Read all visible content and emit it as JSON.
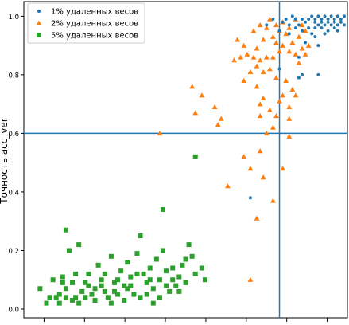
{
  "chart_data": {
    "type": "scatter",
    "title": "",
    "xlabel": "",
    "ylabel": "Точность acc_ver",
    "xlim": [
      0.0,
      1.0
    ],
    "ylim": [
      -0.03,
      1.05
    ],
    "y_ticks": [
      0.0,
      0.2,
      0.4,
      0.6,
      0.8,
      1.0
    ],
    "y_tick_labels": [
      "0.0",
      "0.2",
      "0.4",
      "0.6",
      "0.8",
      "1.0"
    ],
    "x_tick_count": 8,
    "threshold_lines": {
      "horizontal_y": 0.6,
      "vertical_x": 0.79
    },
    "legend_position": "top-left",
    "grid": false,
    "series": [
      {
        "name": "1% удаленных весов",
        "marker": "circle",
        "color": "#1f77b4",
        "points": [
          [
            0.88,
            0.99
          ],
          [
            0.89,
            1.0
          ],
          [
            0.9,
            0.99
          ],
          [
            0.91,
            1.0
          ],
          [
            0.92,
            0.99
          ],
          [
            0.93,
            1.0
          ],
          [
            0.94,
            0.99
          ],
          [
            0.95,
            1.0
          ],
          [
            0.96,
            0.99
          ],
          [
            0.97,
            1.0
          ],
          [
            0.98,
            0.99
          ],
          [
            0.99,
            1.0
          ],
          [
            0.9,
            0.98
          ],
          [
            0.92,
            0.98
          ],
          [
            0.94,
            0.98
          ],
          [
            0.96,
            0.98
          ],
          [
            0.98,
            0.98
          ],
          [
            0.91,
            0.97
          ],
          [
            0.93,
            0.97
          ],
          [
            0.95,
            0.97
          ],
          [
            0.97,
            0.97
          ],
          [
            0.86,
            0.99
          ],
          [
            0.87,
            0.98
          ],
          [
            0.85,
            0.97
          ],
          [
            0.84,
            0.99
          ],
          [
            0.83,
            1.0
          ],
          [
            0.81,
            0.99
          ],
          [
            0.8,
            0.98
          ],
          [
            0.82,
            0.97
          ],
          [
            0.9,
            0.96
          ],
          [
            0.92,
            0.96
          ],
          [
            0.94,
            0.95
          ],
          [
            0.96,
            0.96
          ],
          [
            0.88,
            0.96
          ],
          [
            0.86,
            0.95
          ],
          [
            0.84,
            0.96
          ],
          [
            0.75,
            0.97
          ],
          [
            0.77,
            0.99
          ],
          [
            0.79,
            0.95
          ],
          [
            0.82,
            0.94
          ],
          [
            0.89,
            0.94
          ],
          [
            0.93,
            0.94
          ],
          [
            0.97,
            0.95
          ],
          [
            0.99,
            0.97
          ],
          [
            0.9,
            0.93
          ],
          [
            0.87,
            0.91
          ],
          [
            0.91,
            0.9
          ],
          [
            0.85,
            0.86
          ],
          [
            0.86,
            0.8
          ],
          [
            0.91,
            0.8
          ],
          [
            0.79,
            0.82
          ],
          [
            0.85,
            0.79
          ],
          [
            0.7,
            0.38
          ]
        ]
      },
      {
        "name": "2% удаленных весов",
        "marker": "triangle",
        "color": "#ff7f0e",
        "points": [
          [
            0.76,
            0.99
          ],
          [
            0.78,
            0.97
          ],
          [
            0.8,
            0.98
          ],
          [
            0.82,
            0.96
          ],
          [
            0.84,
            0.99
          ],
          [
            0.86,
            0.97
          ],
          [
            0.87,
            0.95
          ],
          [
            0.85,
            0.93
          ],
          [
            0.81,
            0.94
          ],
          [
            0.79,
            0.95
          ],
          [
            0.77,
            0.93
          ],
          [
            0.75,
            0.96
          ],
          [
            0.73,
            0.97
          ],
          [
            0.71,
            0.95
          ],
          [
            0.74,
            0.92
          ],
          [
            0.78,
            0.91
          ],
          [
            0.8,
            0.9
          ],
          [
            0.83,
            0.91
          ],
          [
            0.86,
            0.89
          ],
          [
            0.88,
            0.9
          ],
          [
            0.84,
            0.87
          ],
          [
            0.82,
            0.88
          ],
          [
            0.87,
            0.87
          ],
          [
            0.85,
            0.84
          ],
          [
            0.66,
            0.92
          ],
          [
            0.68,
            0.9
          ],
          [
            0.72,
            0.89
          ],
          [
            0.65,
            0.85
          ],
          [
            0.67,
            0.86
          ],
          [
            0.69,
            0.87
          ],
          [
            0.71,
            0.86
          ],
          [
            0.73,
            0.85
          ],
          [
            0.75,
            0.86
          ],
          [
            0.77,
            0.86
          ],
          [
            0.79,
            0.88
          ],
          [
            0.72,
            0.83
          ],
          [
            0.74,
            0.81
          ],
          [
            0.7,
            0.81
          ],
          [
            0.68,
            0.78
          ],
          [
            0.76,
            0.82
          ],
          [
            0.78,
            0.79
          ],
          [
            0.81,
            0.78
          ],
          [
            0.83,
            0.75
          ],
          [
            0.72,
            0.76
          ],
          [
            0.74,
            0.72
          ],
          [
            0.79,
            0.71
          ],
          [
            0.82,
            0.65
          ],
          [
            0.76,
            0.68
          ],
          [
            0.73,
            0.7
          ],
          [
            0.78,
            0.66
          ],
          [
            0.75,
            0.6
          ],
          [
            0.77,
            0.62
          ],
          [
            0.82,
            0.69
          ],
          [
            0.84,
            0.73
          ],
          [
            0.8,
            0.73
          ],
          [
            0.73,
            0.66
          ],
          [
            0.52,
            0.76
          ],
          [
            0.55,
            0.73
          ],
          [
            0.53,
            0.67
          ],
          [
            0.59,
            0.69
          ],
          [
            0.61,
            0.65
          ],
          [
            0.6,
            0.63
          ],
          [
            0.42,
            0.6
          ],
          [
            0.82,
            0.59
          ],
          [
            0.8,
            0.48
          ],
          [
            0.73,
            0.54
          ],
          [
            0.68,
            0.52
          ],
          [
            0.74,
            0.45
          ],
          [
            0.7,
            0.48
          ],
          [
            0.63,
            0.42
          ],
          [
            0.77,
            0.37
          ],
          [
            0.72,
            0.31
          ],
          [
            0.7,
            0.1
          ]
        ]
      },
      {
        "name": "5% удаленных весов",
        "marker": "square",
        "color": "#2ca02c",
        "points": [
          [
            0.05,
            0.07
          ],
          [
            0.07,
            0.02
          ],
          [
            0.09,
            0.1
          ],
          [
            0.1,
            0.04
          ],
          [
            0.11,
            0.05
          ],
          [
            0.12,
            0.11
          ],
          [
            0.13,
            0.07
          ],
          [
            0.14,
            0.2
          ],
          [
            0.15,
            0.09
          ],
          [
            0.16,
            0.04
          ],
          [
            0.17,
            0.02
          ],
          [
            0.18,
            0.06
          ],
          [
            0.19,
            0.09
          ],
          [
            0.2,
            0.12
          ],
          [
            0.21,
            0.05
          ],
          [
            0.22,
            0.07
          ],
          [
            0.23,
            0.15
          ],
          [
            0.24,
            0.08
          ],
          [
            0.25,
            0.12
          ],
          [
            0.26,
            0.04
          ],
          [
            0.27,
            0.18
          ],
          [
            0.28,
            0.06
          ],
          [
            0.29,
            0.1
          ],
          [
            0.3,
            0.13
          ],
          [
            0.31,
            0.08
          ],
          [
            0.32,
            0.16
          ],
          [
            0.33,
            0.11
          ],
          [
            0.34,
            0.05
          ],
          [
            0.35,
            0.19
          ],
          [
            0.36,
            0.25
          ],
          [
            0.37,
            0.12
          ],
          [
            0.38,
            0.09
          ],
          [
            0.39,
            0.14
          ],
          [
            0.4,
            0.07
          ],
          [
            0.41,
            0.17
          ],
          [
            0.42,
            0.1
          ],
          [
            0.43,
            0.2
          ],
          [
            0.44,
            0.13
          ],
          [
            0.45,
            0.06
          ],
          [
            0.46,
            0.1
          ],
          [
            0.47,
            0.08
          ],
          [
            0.48,
            0.11
          ],
          [
            0.49,
            0.15
          ],
          [
            0.5,
            0.17
          ],
          [
            0.51,
            0.22
          ],
          [
            0.52,
            0.18
          ],
          [
            0.53,
            0.12
          ],
          [
            0.55,
            0.14
          ],
          [
            0.56,
            0.1
          ],
          [
            0.11,
            0.02
          ],
          [
            0.13,
            0.04
          ],
          [
            0.15,
            0.03
          ],
          [
            0.19,
            0.04
          ],
          [
            0.22,
            0.03
          ],
          [
            0.25,
            0.06
          ],
          [
            0.27,
            0.02
          ],
          [
            0.29,
            0.05
          ],
          [
            0.31,
            0.03
          ],
          [
            0.33,
            0.08
          ],
          [
            0.36,
            0.04
          ],
          [
            0.38,
            0.05
          ],
          [
            0.4,
            0.02
          ],
          [
            0.42,
            0.04
          ],
          [
            0.44,
            0.08
          ],
          [
            0.08,
            0.04
          ],
          [
            0.12,
            0.09
          ],
          [
            0.16,
            0.12
          ],
          [
            0.2,
            0.08
          ],
          [
            0.24,
            0.1
          ],
          [
            0.28,
            0.09
          ],
          [
            0.32,
            0.07
          ],
          [
            0.35,
            0.12
          ],
          [
            0.39,
            0.1
          ],
          [
            0.46,
            0.14
          ],
          [
            0.48,
            0.06
          ],
          [
            0.5,
            0.09
          ],
          [
            0.43,
            0.34
          ],
          [
            0.53,
            0.52
          ],
          [
            0.13,
            0.27
          ],
          [
            0.17,
            0.22
          ]
        ]
      }
    ]
  }
}
